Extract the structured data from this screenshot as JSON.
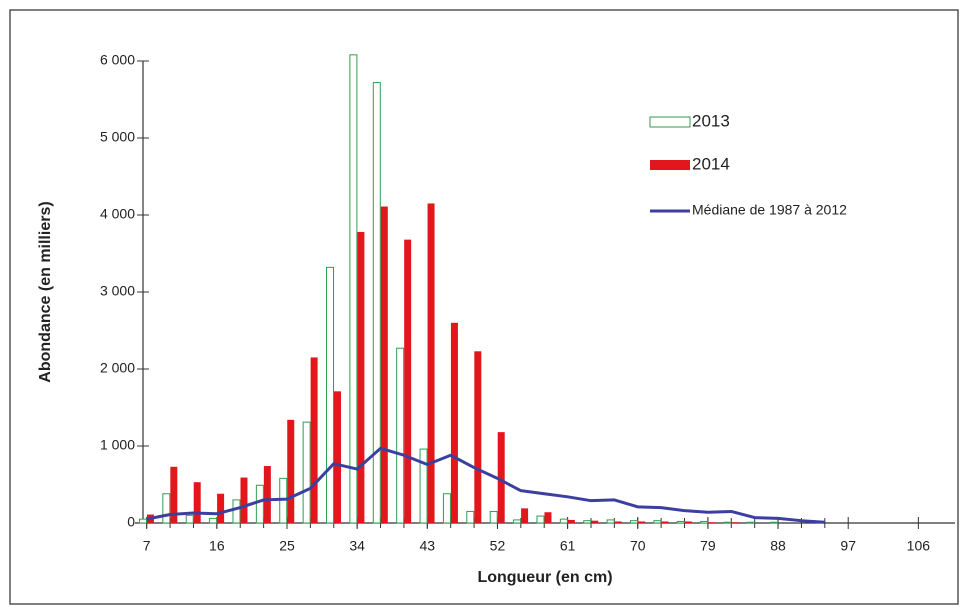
{
  "chart_data": {
    "type": "bar",
    "x_label": "Longueur (en cm)",
    "y_label": "Abondance (en milliers)",
    "x": [
      7,
      10,
      13,
      16,
      19,
      22,
      25,
      28,
      31,
      34,
      37,
      40,
      43,
      46,
      49,
      52,
      55,
      58,
      61,
      64,
      67,
      70,
      73,
      76,
      79,
      82,
      85,
      88,
      91,
      94
    ],
    "series": [
      {
        "name": "2013",
        "type": "bar",
        "style": "outline",
        "color": "#2f9e4f",
        "values": [
          50,
          380,
          100,
          60,
          300,
          490,
          580,
          1310,
          3320,
          6080,
          5720,
          2270,
          960,
          380,
          150,
          150,
          40,
          90,
          50,
          30,
          40,
          30,
          30,
          20,
          20,
          10,
          10,
          10,
          0,
          0
        ]
      },
      {
        "name": "2014",
        "type": "bar",
        "style": "filled",
        "color": "#e3161c",
        "values": [
          110,
          730,
          530,
          380,
          590,
          740,
          1340,
          2150,
          1710,
          3780,
          4110,
          3680,
          4150,
          2600,
          2230,
          1180,
          190,
          140,
          40,
          30,
          20,
          20,
          20,
          20,
          10,
          10,
          0,
          0,
          0,
          0
        ]
      },
      {
        "name": "Médiane de 1987 à 2012",
        "type": "line",
        "color": "#3c3f9f",
        "values": [
          50,
          110,
          130,
          120,
          200,
          300,
          310,
          450,
          770,
          700,
          970,
          880,
          760,
          880,
          720,
          580,
          420,
          380,
          340,
          290,
          300,
          210,
          200,
          160,
          140,
          150,
          70,
          60,
          30,
          10
        ]
      }
    ],
    "xlim": [
      5.5,
      110.7
    ],
    "xticks": [
      7,
      16,
      25,
      34,
      43,
      52,
      61,
      70,
      79,
      88,
      97,
      106
    ],
    "ylim": [
      0,
      6000
    ],
    "yticks": [
      0,
      {
        "value": 1000,
        "label": "1 000"
      },
      {
        "value": 2000,
        "label": "2 000"
      },
      {
        "value": 3000,
        "label": "3 000"
      },
      {
        "value": 4000,
        "label": "4 000"
      },
      {
        "value": 5000,
        "label": "5 000"
      },
      {
        "value": 6000,
        "label": "6 000"
      }
    ],
    "legend": "top-right"
  }
}
